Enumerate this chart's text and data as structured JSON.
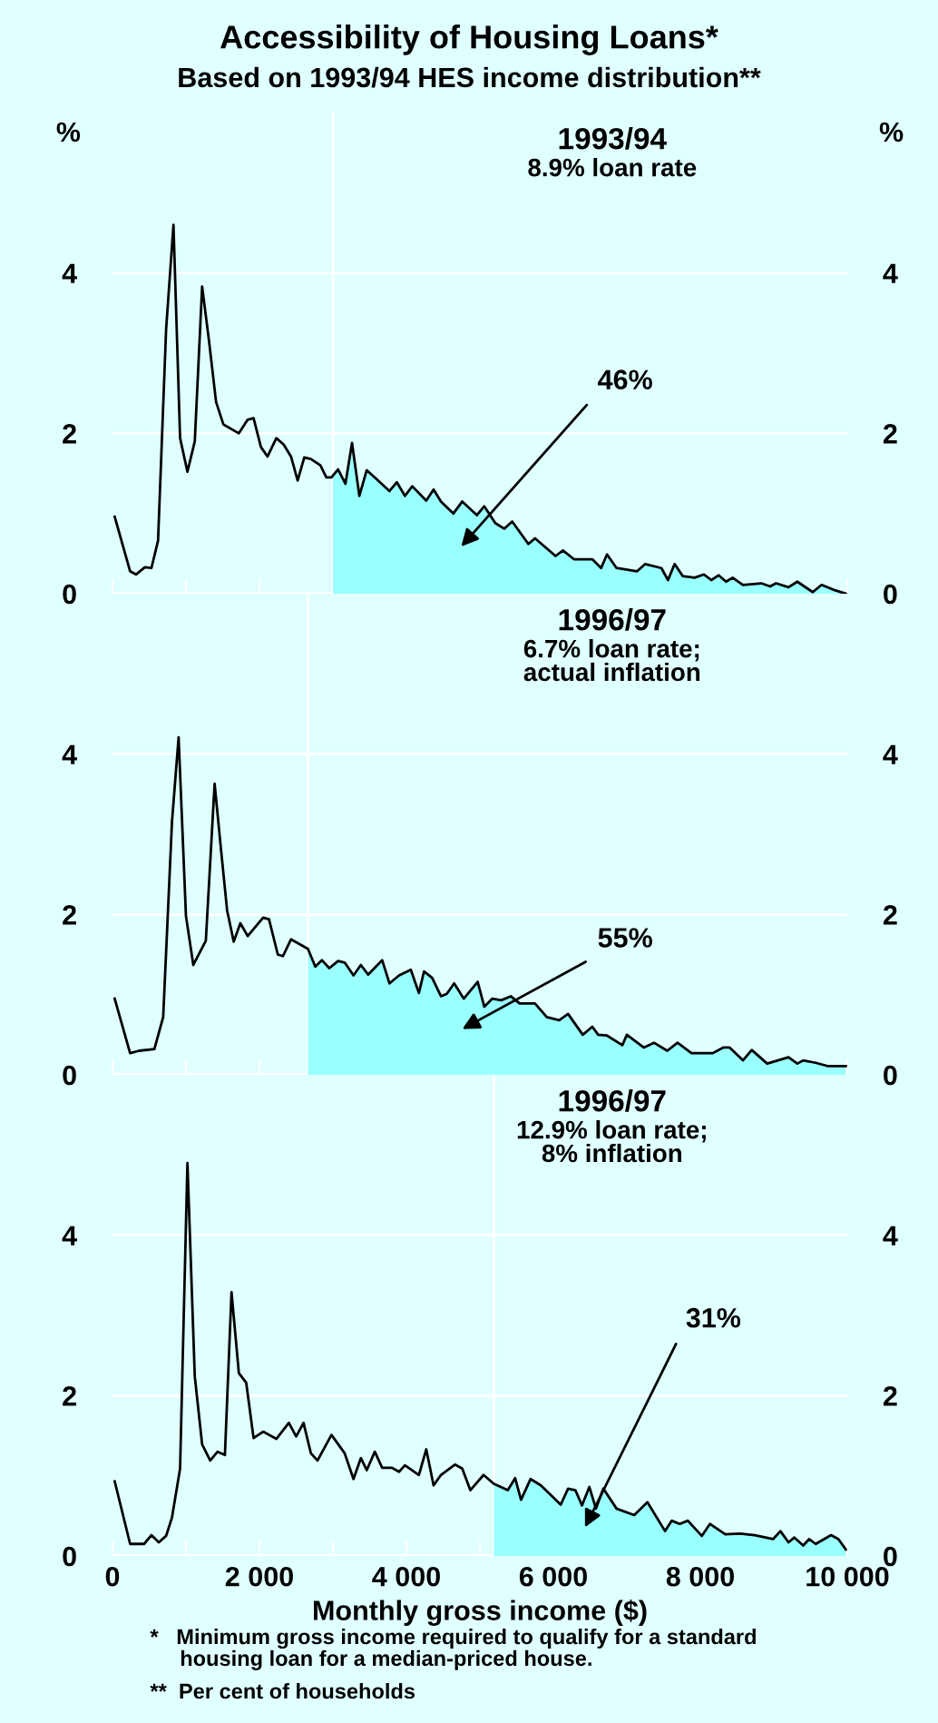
{
  "chart_data": [
    {
      "type": "line",
      "title": "1993/94",
      "subtitle": "8.9% loan rate",
      "ylabel": "%",
      "y2label": "%",
      "annotations": [
        "Accessibility of Housing Loans*",
        "Based on 1993/94 HES income distribution**",
        "46%"
      ],
      "xlim": [
        0,
        10000
      ],
      "xticks": [
        {
          "value": 0,
          "label": null
        },
        {
          "value": 1000,
          "label": null
        },
        {
          "value": 2000,
          "label": null
        },
        {
          "value": 3000,
          "label": null
        },
        {
          "value": 4000,
          "label": null
        },
        {
          "value": 5000,
          "label": null
        },
        {
          "value": 6000,
          "label": null
        },
        {
          "value": 7000,
          "label": null
        },
        {
          "value": 8000,
          "label": null
        },
        {
          "value": 9000,
          "label": null
        },
        {
          "value": 10000,
          "label": null
        }
      ],
      "ylim": [
        0,
        6
      ],
      "yticks": [
        0,
        2,
        4
      ],
      "y2lim": [
        0,
        6
      ],
      "y2ticks": [
        0,
        2,
        4
      ],
      "tick_labels": "y",
      "grid": "y",
      "legend": false,
      "ref_lines": [
        {
          "axis": "x",
          "value": 3000,
          "label": null,
          "color": "#ffffff"
        }
      ],
      "series": [
        {
          "type": "area",
          "color": "#99ffff",
          "x": [
            3000,
            3070,
            3170,
            3260,
            3360,
            3460,
            3570,
            3770,
            3870,
            3980,
            4080,
            4270,
            4370,
            4470,
            4640,
            4760,
            4960,
            5060,
            5210,
            5330,
            5440,
            5660,
            5750,
            6030,
            6130,
            6280,
            6530,
            6650,
            6730,
            6860,
            7140,
            7250,
            7470,
            7560,
            7650,
            7760,
            7920,
            8050,
            8150,
            8250,
            8350,
            8440,
            8580,
            8830,
            8950,
            9030,
            9200,
            9320,
            9530,
            9650,
            9810,
            9980
          ],
          "values": [
            1.45,
            1.55,
            1.37,
            1.88,
            1.22,
            1.54,
            1.45,
            1.28,
            1.39,
            1.22,
            1.34,
            1.16,
            1.3,
            1.15,
            1.0,
            1.15,
            0.98,
            1.09,
            0.88,
            0.81,
            0.9,
            0.62,
            0.69,
            0.47,
            0.54,
            0.43,
            0.43,
            0.32,
            0.49,
            0.32,
            0.28,
            0.37,
            0.32,
            0.17,
            0.37,
            0.22,
            0.2,
            0.24,
            0.17,
            0.23,
            0.15,
            0.2,
            0.11,
            0.13,
            0.09,
            0.13,
            0.08,
            0.15,
            0.02,
            0.11,
            0.05,
            0.0
          ]
        },
        {
          "color": "#000000",
          "x": [
            30,
            240,
            320,
            440,
            530,
            620,
            730,
            830,
            920,
            1020,
            1120,
            1220,
            1310,
            1410,
            1510,
            1720,
            1840,
            1920,
            2020,
            2110,
            2230,
            2330,
            2430,
            2520,
            2610,
            2700,
            2830,
            2910,
            2980,
            3070,
            3170,
            3260,
            3360,
            3460,
            3570,
            3770,
            3870,
            3980,
            4080,
            4270,
            4370,
            4470,
            4640,
            4760,
            4960,
            5060,
            5210,
            5330,
            5440,
            5660,
            5750,
            6030,
            6130,
            6280,
            6530,
            6650,
            6730,
            6860,
            7140,
            7250,
            7470,
            7560,
            7650,
            7760,
            7920,
            8050,
            8150,
            8250,
            8350,
            8440,
            8580,
            8830,
            8950,
            9030,
            9200,
            9320,
            9530,
            9650,
            9810,
            9980
          ],
          "values": [
            0.96,
            0.28,
            0.24,
            0.33,
            0.32,
            0.66,
            3.3,
            4.6,
            1.94,
            1.52,
            1.9,
            3.83,
            3.18,
            2.39,
            2.11,
            2.0,
            2.17,
            2.19,
            1.83,
            1.71,
            1.94,
            1.86,
            1.71,
            1.41,
            1.7,
            1.68,
            1.6,
            1.45,
            1.45,
            1.55,
            1.37,
            1.88,
            1.22,
            1.54,
            1.45,
            1.28,
            1.39,
            1.22,
            1.34,
            1.16,
            1.3,
            1.15,
            1.0,
            1.15,
            0.98,
            1.09,
            0.88,
            0.81,
            0.9,
            0.62,
            0.69,
            0.47,
            0.54,
            0.43,
            0.43,
            0.32,
            0.49,
            0.32,
            0.28,
            0.37,
            0.32,
            0.17,
            0.37,
            0.22,
            0.2,
            0.24,
            0.17,
            0.23,
            0.15,
            0.2,
            0.11,
            0.13,
            0.09,
            0.13,
            0.08,
            0.15,
            0.02,
            0.11,
            0.05,
            0.0
          ]
        }
      ]
    },
    {
      "type": "line",
      "title": "1996/97",
      "subtitle": "6.7% loan rate;\nactual inflation",
      "annotations": [
        "55%"
      ],
      "xlim": [
        0,
        10000
      ],
      "xticks": [
        {
          "value": 0,
          "label": null
        },
        {
          "value": 1000,
          "label": null
        },
        {
          "value": 2000,
          "label": null
        },
        {
          "value": 3000,
          "label": null
        },
        {
          "value": 4000,
          "label": null
        },
        {
          "value": 5000,
          "label": null
        },
        {
          "value": 6000,
          "label": null
        },
        {
          "value": 7000,
          "label": null
        },
        {
          "value": 8000,
          "label": null
        },
        {
          "value": 9000,
          "label": null
        },
        {
          "value": 10000,
          "label": null
        }
      ],
      "ylim": [
        0,
        6
      ],
      "yticks": [
        0,
        2,
        4
      ],
      "y2lim": [
        0,
        6
      ],
      "y2ticks": [
        0,
        2,
        4
      ],
      "tick_labels": "y",
      "grid": "y",
      "legend": false,
      "ref_lines": [
        {
          "axis": "x",
          "value": 2660,
          "label": null,
          "color": "#ffffff"
        }
      ],
      "series": [
        {
          "type": "area",
          "color": "#99ffff",
          "x": [
            2660,
            2760,
            2850,
            2950,
            3070,
            3160,
            3280,
            3380,
            3480,
            3670,
            3770,
            3900,
            4060,
            4170,
            4240,
            4350,
            4470,
            4550,
            4650,
            4780,
            4970,
            5060,
            5170,
            5290,
            5420,
            5540,
            5750,
            5910,
            6080,
            6200,
            6400,
            6530,
            6610,
            6730,
            6940,
            7000,
            7230,
            7370,
            7550,
            7690,
            7880,
            8170,
            8310,
            8400,
            8580,
            8700,
            8910,
            9200,
            9320,
            9400,
            9570,
            9730,
            9980
          ],
          "values": [
            1.57,
            1.35,
            1.43,
            1.33,
            1.42,
            1.4,
            1.24,
            1.37,
            1.25,
            1.43,
            1.14,
            1.24,
            1.31,
            1.02,
            1.29,
            1.21,
            0.98,
            1.01,
            1.14,
            0.95,
            1.16,
            0.85,
            0.95,
            0.93,
            0.98,
            0.89,
            0.89,
            0.72,
            0.68,
            0.76,
            0.5,
            0.6,
            0.5,
            0.49,
            0.37,
            0.5,
            0.34,
            0.4,
            0.3,
            0.4,
            0.27,
            0.27,
            0.34,
            0.34,
            0.18,
            0.31,
            0.14,
            0.22,
            0.14,
            0.18,
            0.15,
            0.11,
            0.11
          ]
        },
        {
          "color": "#000000",
          "x": [
            30,
            240,
            360,
            570,
            690,
            810,
            900,
            1000,
            1100,
            1270,
            1390,
            1480,
            1560,
            1650,
            1740,
            1840,
            2050,
            2130,
            2250,
            2320,
            2430,
            2660,
            2760,
            2850,
            2950,
            3070,
            3160,
            3280,
            3380,
            3480,
            3670,
            3770,
            3900,
            4060,
            4170,
            4240,
            4350,
            4470,
            4550,
            4650,
            4780,
            4970,
            5060,
            5170,
            5290,
            5420,
            5540,
            5750,
            5910,
            6080,
            6200,
            6400,
            6530,
            6610,
            6730,
            6940,
            7000,
            7230,
            7370,
            7550,
            7690,
            7880,
            8170,
            8310,
            8400,
            8580,
            8700,
            8910,
            9200,
            9320,
            9400,
            9570,
            9730,
            9980
          ],
          "values": [
            0.95,
            0.27,
            0.3,
            0.32,
            0.72,
            3.16,
            4.21,
            1.98,
            1.37,
            1.67,
            3.63,
            2.78,
            2.05,
            1.66,
            1.89,
            1.73,
            1.96,
            1.94,
            1.5,
            1.48,
            1.69,
            1.57,
            1.35,
            1.43,
            1.33,
            1.42,
            1.4,
            1.24,
            1.37,
            1.25,
            1.43,
            1.14,
            1.24,
            1.31,
            1.02,
            1.29,
            1.21,
            0.98,
            1.01,
            1.14,
            0.95,
            1.16,
            0.85,
            0.95,
            0.93,
            0.98,
            0.89,
            0.89,
            0.72,
            0.68,
            0.76,
            0.5,
            0.6,
            0.5,
            0.49,
            0.37,
            0.5,
            0.34,
            0.4,
            0.3,
            0.4,
            0.27,
            0.27,
            0.34,
            0.34,
            0.18,
            0.31,
            0.14,
            0.22,
            0.14,
            0.18,
            0.15,
            0.11,
            0.11
          ]
        }
      ]
    },
    {
      "type": "line",
      "title": "1996/97",
      "subtitle": "12.9% loan rate;\n8% inflation",
      "xlabel": "Monthly gross income ($)",
      "annotations": [
        "31%",
        "*   Minimum gross income required to qualify for a standard\n     housing loan for a median-priced house.",
        "**  Per cent of households"
      ],
      "xlim": [
        0,
        10000
      ],
      "xticks": [
        0,
        {
          "value": 1000,
          "label": null
        },
        {
          "value": 2000,
          "label": "2 000"
        },
        {
          "value": 3000,
          "label": null
        },
        {
          "value": 4000,
          "label": "4 000"
        },
        {
          "value": 5000,
          "label": null
        },
        {
          "value": 6000,
          "label": "6 000"
        },
        {
          "value": 7000,
          "label": null
        },
        {
          "value": 8000,
          "label": "8 000"
        },
        {
          "value": 9000,
          "label": null
        },
        {
          "value": 10000,
          "label": "10 000"
        }
      ],
      "ylim": [
        0,
        6
      ],
      "yticks": [
        0,
        2,
        4
      ],
      "y2lim": [
        0,
        6
      ],
      "y2ticks": [
        0,
        2,
        4
      ],
      "grid": "y",
      "legend": false,
      "ref_lines": [
        {
          "axis": "x",
          "value": 5190,
          "label": null,
          "color": "#ffffff"
        }
      ],
      "series": [
        {
          "type": "area",
          "color": "#99ffff",
          "x": [
            5190,
            5380,
            5480,
            5560,
            5690,
            5830,
            6100,
            6200,
            6300,
            6390,
            6490,
            6580,
            6680,
            6860,
            7100,
            7280,
            7520,
            7610,
            7720,
            7830,
            8020,
            8130,
            8340,
            8540,
            8740,
            8990,
            9090,
            9200,
            9280,
            9400,
            9480,
            9570,
            9780,
            9880,
            9980
          ],
          "values": [
            0.9,
            0.82,
            0.97,
            0.7,
            0.96,
            0.88,
            0.64,
            0.84,
            0.82,
            0.63,
            0.86,
            0.59,
            0.84,
            0.59,
            0.51,
            0.67,
            0.31,
            0.44,
            0.4,
            0.44,
            0.25,
            0.4,
            0.27,
            0.28,
            0.26,
            0.21,
            0.31,
            0.17,
            0.23,
            0.13,
            0.21,
            0.15,
            0.26,
            0.21,
            0.08
          ]
        },
        {
          "color": "#000000",
          "x": [
            30,
            240,
            430,
            530,
            630,
            730,
            810,
            920,
            1020,
            1120,
            1220,
            1330,
            1430,
            1530,
            1620,
            1720,
            1820,
            1920,
            2050,
            2230,
            2400,
            2500,
            2600,
            2700,
            2790,
            2980,
            3160,
            3280,
            3380,
            3460,
            3570,
            3670,
            3800,
            3900,
            3980,
            4170,
            4270,
            4370,
            4470,
            4660,
            4760,
            4870,
            5050,
            5190,
            5380,
            5480,
            5560,
            5690,
            5830,
            6100,
            6200,
            6300,
            6390,
            6490,
            6580,
            6680,
            6860,
            7100,
            7280,
            7520,
            7610,
            7720,
            7830,
            8020,
            8130,
            8340,
            8540,
            8740,
            8990,
            9090,
            9200,
            9280,
            9400,
            9480,
            9570,
            9780,
            9880,
            9980
          ],
          "values": [
            0.93,
            0.15,
            0.15,
            0.26,
            0.17,
            0.25,
            0.48,
            1.09,
            4.9,
            2.24,
            1.39,
            1.19,
            1.3,
            1.26,
            3.29,
            2.28,
            2.16,
            1.47,
            1.55,
            1.46,
            1.66,
            1.49,
            1.66,
            1.28,
            1.19,
            1.51,
            1.28,
            0.96,
            1.22,
            1.07,
            1.3,
            1.1,
            1.1,
            1.05,
            1.13,
            1.01,
            1.33,
            0.88,
            1.01,
            1.14,
            1.09,
            0.82,
            1.01,
            0.9,
            0.82,
            0.97,
            0.7,
            0.96,
            0.88,
            0.64,
            0.84,
            0.82,
            0.63,
            0.86,
            0.59,
            0.84,
            0.59,
            0.51,
            0.67,
            0.31,
            0.44,
            0.4,
            0.44,
            0.25,
            0.4,
            0.27,
            0.28,
            0.26,
            0.21,
            0.31,
            0.17,
            0.23,
            0.13,
            0.21,
            0.15,
            0.26,
            0.21,
            0.08
          ]
        }
      ]
    }
  ]
}
